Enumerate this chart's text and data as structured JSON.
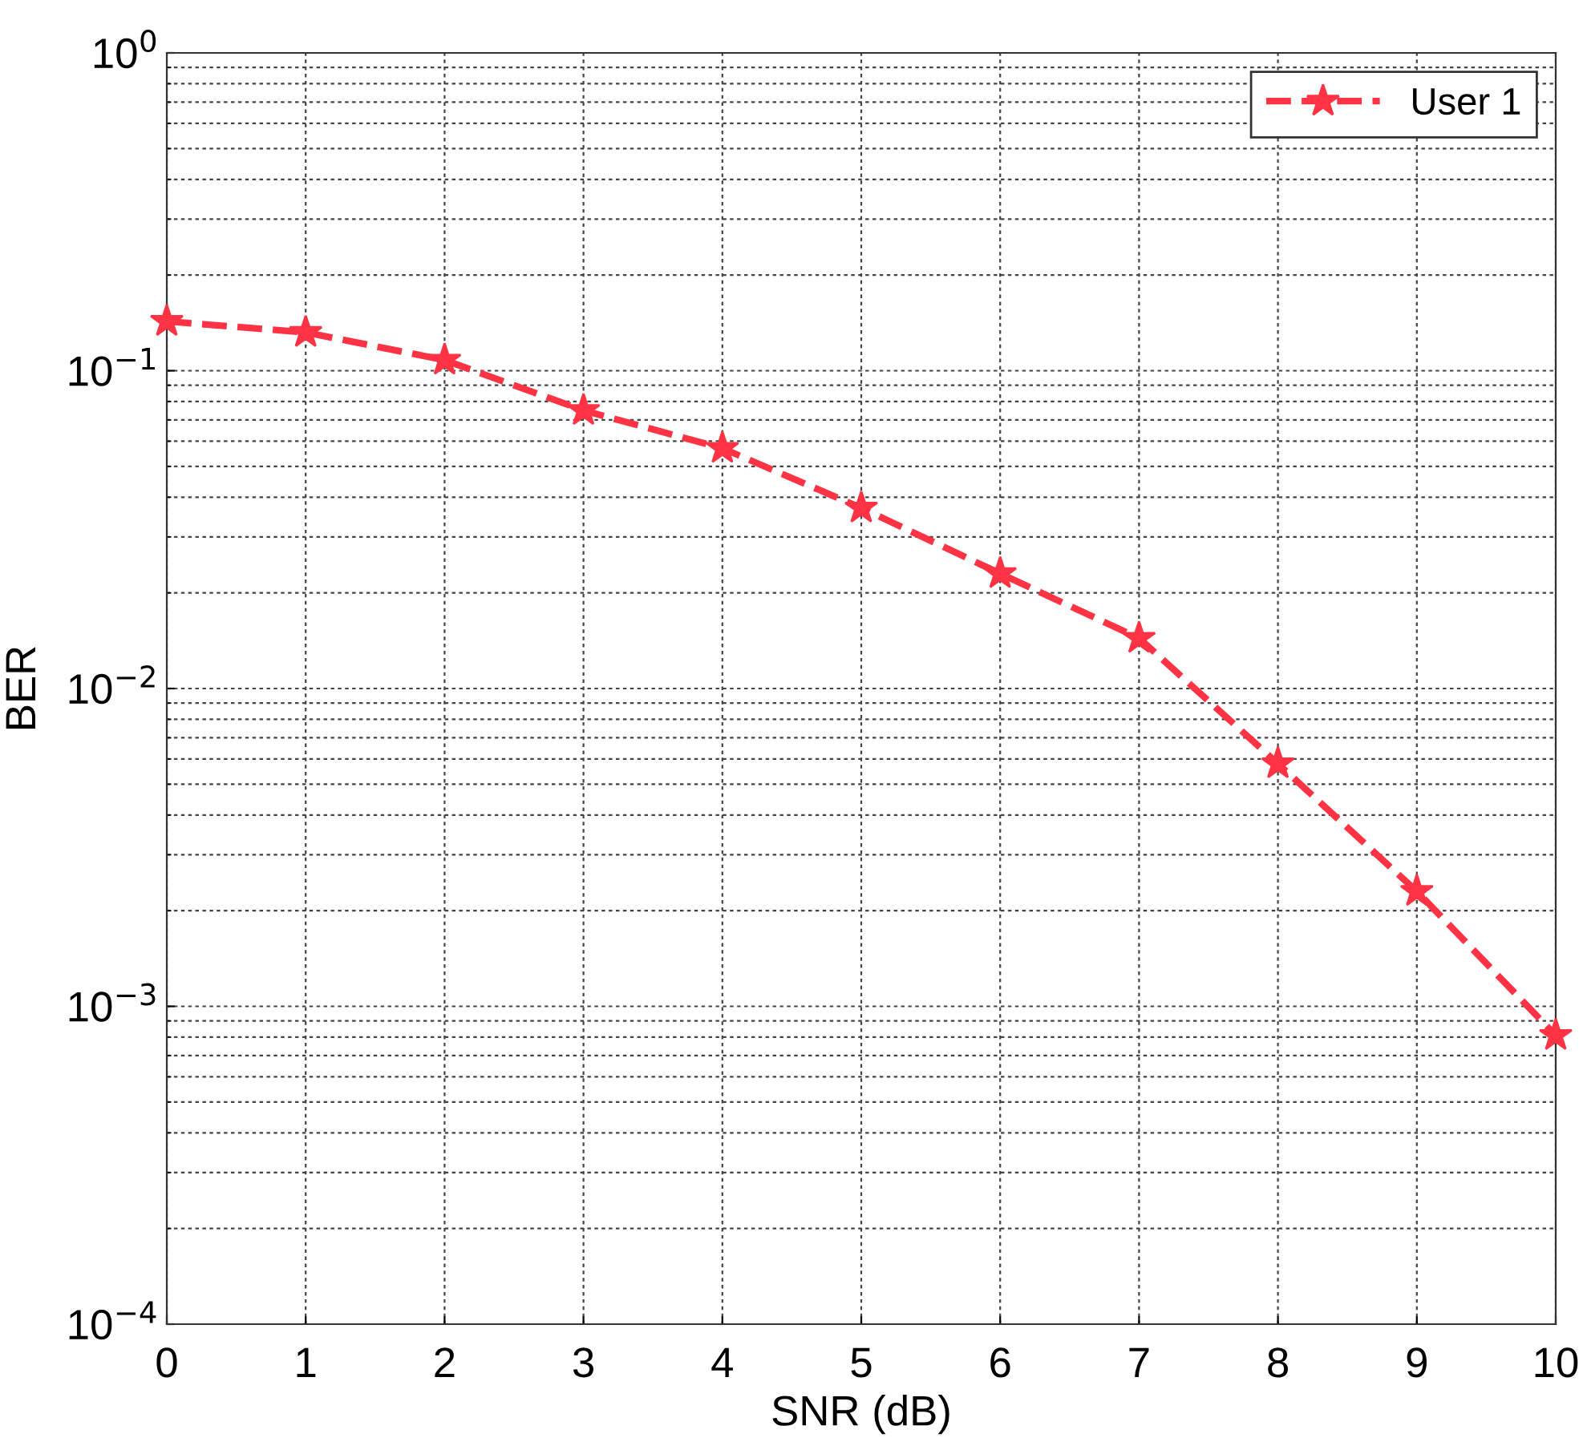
{
  "chart_data": {
    "type": "line",
    "xlabel": "SNR (dB)",
    "ylabel": "BER",
    "x": [
      0,
      1,
      2,
      3,
      4,
      5,
      6,
      7,
      8,
      9,
      10
    ],
    "series": [
      {
        "name": "User 1",
        "color": "#ff3344",
        "values": [
          0.143,
          0.132,
          0.108,
          0.075,
          0.057,
          0.037,
          0.023,
          0.0144,
          0.0058,
          0.0023,
          0.00081
        ]
      }
    ],
    "xlim": [
      0,
      10
    ],
    "xticks": [
      0,
      1,
      2,
      3,
      4,
      5,
      6,
      7,
      8,
      9,
      10
    ],
    "ylim": [
      0.0001,
      1
    ],
    "yticks": [
      {
        "value": 0.0001,
        "label": "10$^{−4}$"
      },
      {
        "value": 0.001,
        "label": "10$^{−3}$"
      },
      {
        "value": 0.01,
        "label": "10$^{−2}$"
      },
      {
        "value": 0.1,
        "label": "10$^{−1}$"
      },
      {
        "value": 1,
        "label": "10$^{0}$"
      }
    ],
    "log": "y",
    "grid": true,
    "legend": "top right",
    "marker": "star",
    "line_style": "dashed"
  }
}
